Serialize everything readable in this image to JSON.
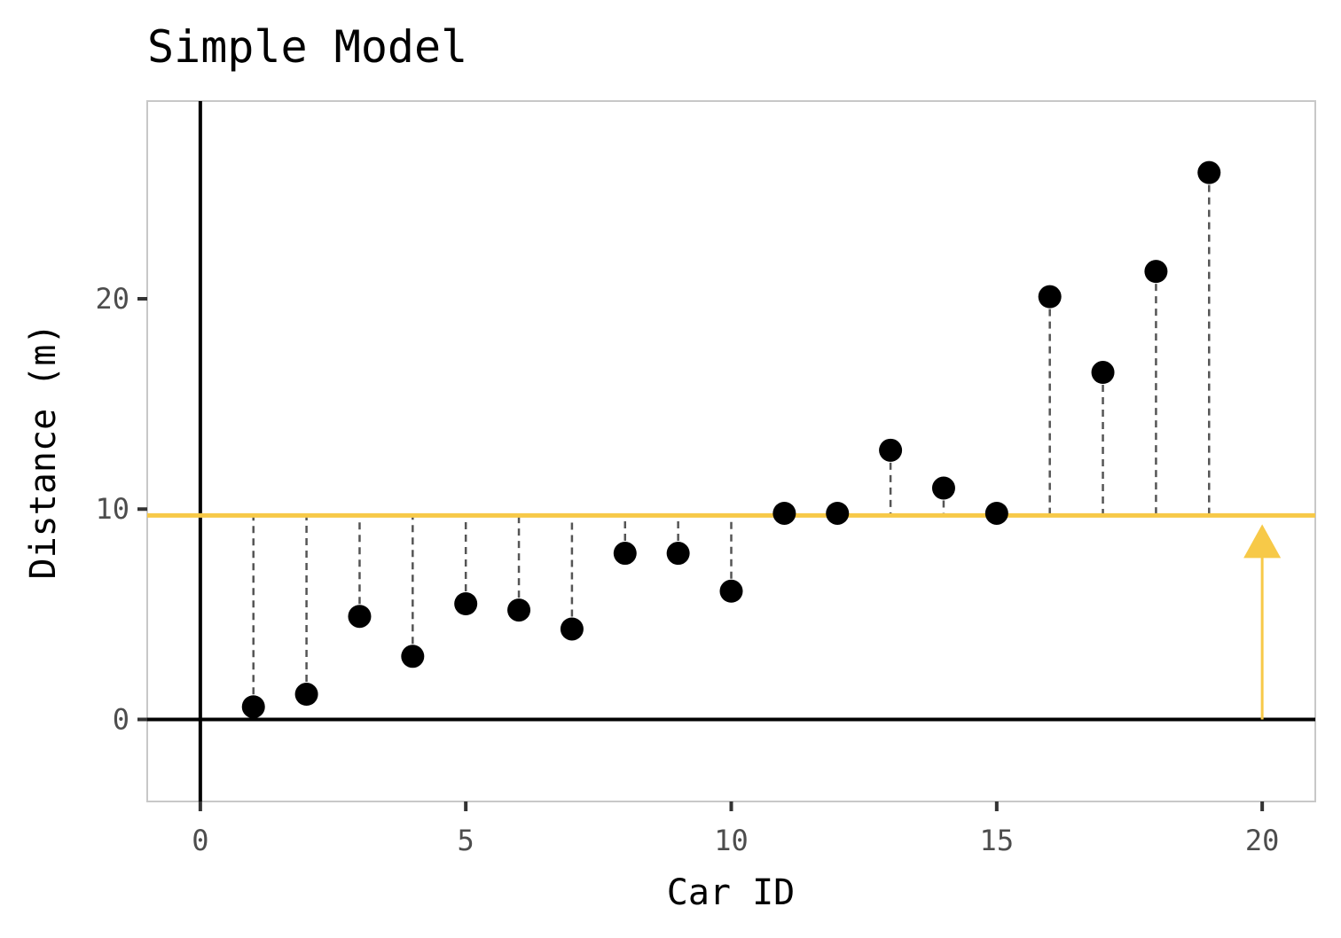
{
  "chart_data": {
    "type": "scatter",
    "title": "Simple Model",
    "xlabel": "Car ID",
    "ylabel": "Distance (m)",
    "xlim": [
      -1,
      21
    ],
    "ylim": [
      -3.9,
      29.4
    ],
    "x_ticks": [
      0,
      5,
      10,
      15,
      20
    ],
    "y_ticks": [
      0,
      10,
      20
    ],
    "x_tick_labels": [
      "0",
      "5",
      "10",
      "15",
      "20"
    ],
    "y_tick_labels": [
      "0",
      "10",
      "20"
    ],
    "grid": false,
    "points": {
      "x": [
        1,
        2,
        3,
        4,
        5,
        6,
        7,
        8,
        9,
        10,
        11,
        12,
        13,
        14,
        15,
        16,
        17,
        18,
        19
      ],
      "y": [
        0.6,
        1.2,
        4.9,
        3.0,
        5.5,
        5.2,
        4.3,
        7.9,
        7.9,
        6.1,
        9.8,
        9.8,
        12.8,
        11.0,
        9.8,
        20.1,
        16.5,
        21.3,
        26.0
      ]
    },
    "mean_line": {
      "y": 9.7,
      "color": "#f7c948"
    },
    "arrow": {
      "x": 20,
      "from": 0,
      "to": 9.7,
      "color": "#f7c948"
    },
    "colors": {
      "points": "#000000",
      "residuals": "#555555",
      "axes_lines": "#000000",
      "panel_border": "#c8c8c8"
    }
  }
}
